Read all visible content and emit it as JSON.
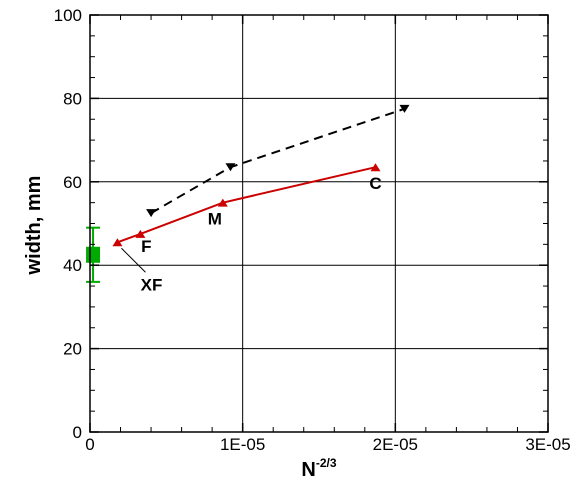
{
  "chart_data": {
    "type": "line",
    "xlabel": "N",
    "xlabel_superscript": "-2/3",
    "ylabel": "width, mm",
    "xlim": [
      0,
      3e-05
    ],
    "ylim": [
      0,
      100
    ],
    "x_ticks": [
      0,
      1e-05,
      2e-05,
      3e-05
    ],
    "x_tick_labels": [
      "0",
      "1E-05",
      "2E-05",
      "3E-05"
    ],
    "y_ticks": [
      0,
      20,
      40,
      60,
      80,
      100
    ],
    "y_tick_labels": [
      "0",
      "20",
      "40",
      "60",
      "80",
      "100"
    ],
    "grid": true,
    "series": [
      {
        "color": "#cc0000",
        "line_style": "solid",
        "marker": "triangle-up",
        "x": [
          1.8e-06,
          3.3e-06,
          8.7e-06,
          1.87e-05
        ],
        "y": [
          45.5,
          47.5,
          55,
          63.5
        ]
      },
      {
        "color": "#000000",
        "line_style": "dashed",
        "marker": "triangle-down",
        "x": [
          4e-06,
          9.2e-06,
          2.06e-05
        ],
        "y": [
          52.5,
          63.5,
          77.5
        ]
      },
      {
        "color": "#00aa00",
        "marker": "square",
        "x": [
          2e-07
        ],
        "y": [
          42.5
        ],
        "error_low": [
          36
        ],
        "error_high": [
          49
        ]
      }
    ],
    "annotations": [
      {
        "text": "F",
        "x": 3.3e-06,
        "y": 47.5
      },
      {
        "text": "M",
        "x": 8.7e-06,
        "y": 55
      },
      {
        "text": "C",
        "x": 1.87e-05,
        "y": 63.5
      },
      {
        "text": "XF",
        "x": 1.8e-06,
        "y": 45.5,
        "leader": true
      }
    ]
  }
}
